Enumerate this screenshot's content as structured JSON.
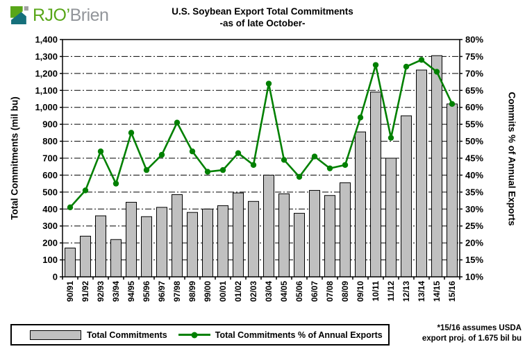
{
  "logo": {
    "text_green": "RJO’",
    "text_gray": "Brien"
  },
  "chart_data": {
    "type": "bar+line combo",
    "title": "U.S. Soybean Export Total Commitments",
    "subtitle": "-as of late October-",
    "categories": [
      "90/91",
      "91/92",
      "92/93",
      "93/94",
      "94/95",
      "95/96",
      "96/97",
      "97/98",
      "98/99",
      "99/00",
      "00/01",
      "01/02",
      "02/03",
      "03/04",
      "04/05",
      "05/06",
      "06/07",
      "07/08",
      "08/09",
      "09/10",
      "10/11",
      "11/12",
      "12/13",
      "13/14",
      "14/15",
      "15/16"
    ],
    "series": [
      {
        "name": "Total Commitments",
        "type": "bar",
        "axis": "left",
        "unit": "mil bu",
        "color": "#c0c0c0",
        "values": [
          170,
          240,
          360,
          220,
          440,
          355,
          410,
          485,
          380,
          400,
          420,
          495,
          445,
          600,
          490,
          375,
          510,
          480,
          555,
          855,
          1090,
          700,
          950,
          1220,
          1305,
          1020
        ]
      },
      {
        "name": "Total Commitments % of Annual Exports",
        "type": "line",
        "axis": "right",
        "unit": "%",
        "color": "#008000",
        "values": [
          30.5,
          35.5,
          47,
          37.5,
          52.5,
          41.5,
          46,
          55.5,
          47,
          41,
          41.5,
          46.5,
          43,
          67,
          44.5,
          39.5,
          45.5,
          42,
          43,
          57,
          72.5,
          51,
          72,
          74,
          70.5,
          61
        ]
      }
    ],
    "left_axis": {
      "label": "Total Commitments (mil bu)",
      "min": 0,
      "max": 1400,
      "step": 100,
      "tick_labels": [
        "0",
        "100",
        "200",
        "300",
        "400",
        "500",
        "600",
        "700",
        "800",
        "900",
        "1,000",
        "1,100",
        "1,200",
        "1,300",
        "1,400"
      ]
    },
    "right_axis": {
      "label": "Commits % of Annual Exports",
      "min": 10,
      "max": 80,
      "step": 5,
      "tick_labels": [
        "10%",
        "15%",
        "20%",
        "25%",
        "30%",
        "35%",
        "40%",
        "45%",
        "50%",
        "55%",
        "60%",
        "65%",
        "70%",
        "75%",
        "80%"
      ]
    },
    "gridlines": "horizontal dash-dot",
    "legend_position": "bottom-left"
  },
  "legend": {
    "bar_label": "Total Commitments",
    "line_label": "Total Commitments % of Annual Exports"
  },
  "footnote": {
    "line1": "*15/16 assumes USDA",
    "line2": "export proj. of 1.675 bil bu"
  },
  "colors": {
    "bar_fill": "#c0c0c0",
    "bar_border": "#000000",
    "line_green": "#008000",
    "logo_green": "#58a618",
    "logo_teal": "#15707b",
    "logo_gray": "#a0a0a0",
    "text": "#000000"
  }
}
